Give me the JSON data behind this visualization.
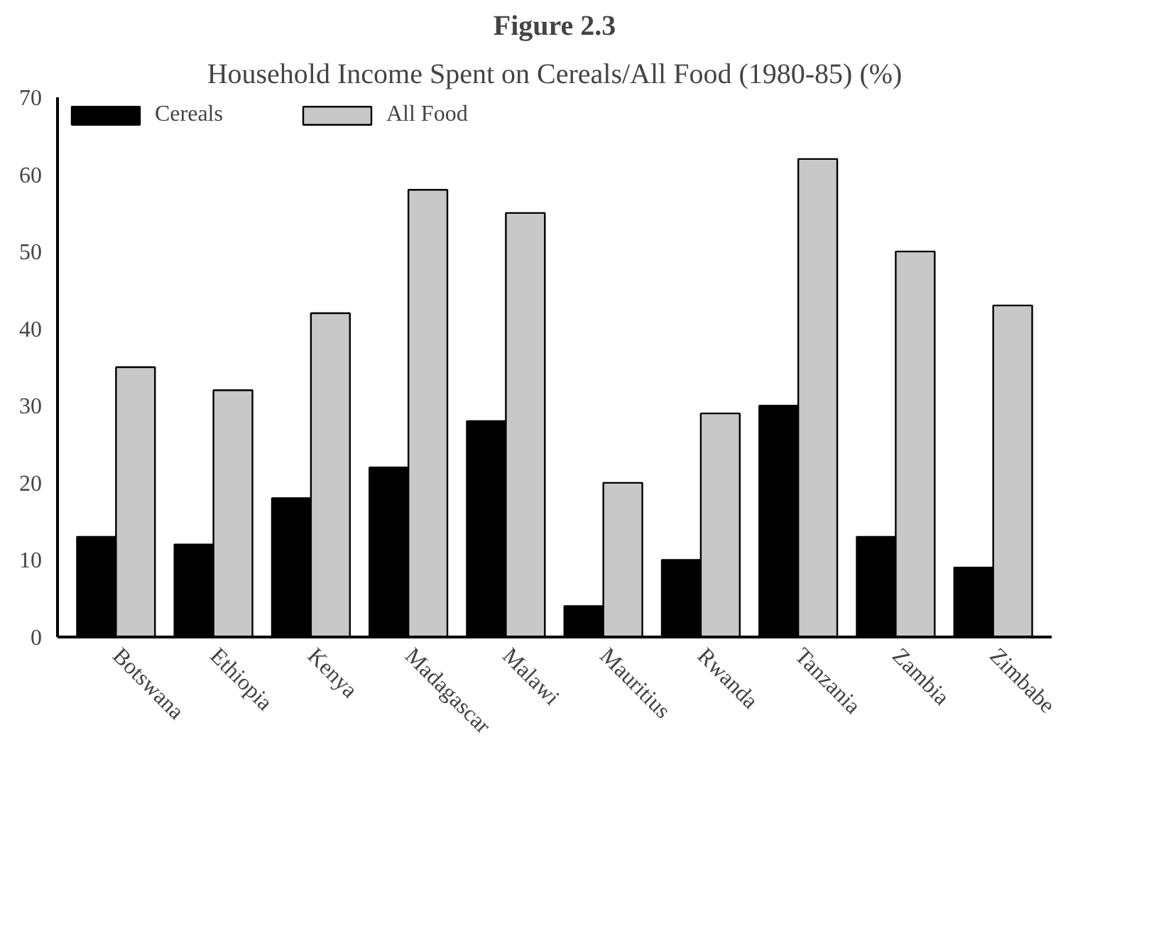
{
  "chart_data": {
    "type": "bar",
    "title": "Figure 2.3",
    "subtitle": "Household Income Spent on Cereals/All Food (1980-85) (%)",
    "categories": [
      "Botswana",
      "Ethiopia",
      "Kenya",
      "Madagascar",
      "Malawi",
      "Mauritius",
      "Rwanda",
      "Tanzania",
      "Zambia",
      "Zimbabe"
    ],
    "series": [
      {
        "name": "Cereals",
        "color": "#000000",
        "values": [
          13,
          12,
          18,
          22,
          28,
          4,
          10,
          30,
          13,
          9
        ]
      },
      {
        "name": "All Food",
        "color": "#c8c8c8",
        "values": [
          35,
          32,
          42,
          58,
          55,
          20,
          29,
          62,
          50,
          43
        ]
      }
    ],
    "ylim": [
      0,
      70
    ],
    "yticks": [
      0,
      10,
      20,
      30,
      40,
      50,
      60,
      70
    ],
    "grid": false,
    "legend": "top left"
  }
}
